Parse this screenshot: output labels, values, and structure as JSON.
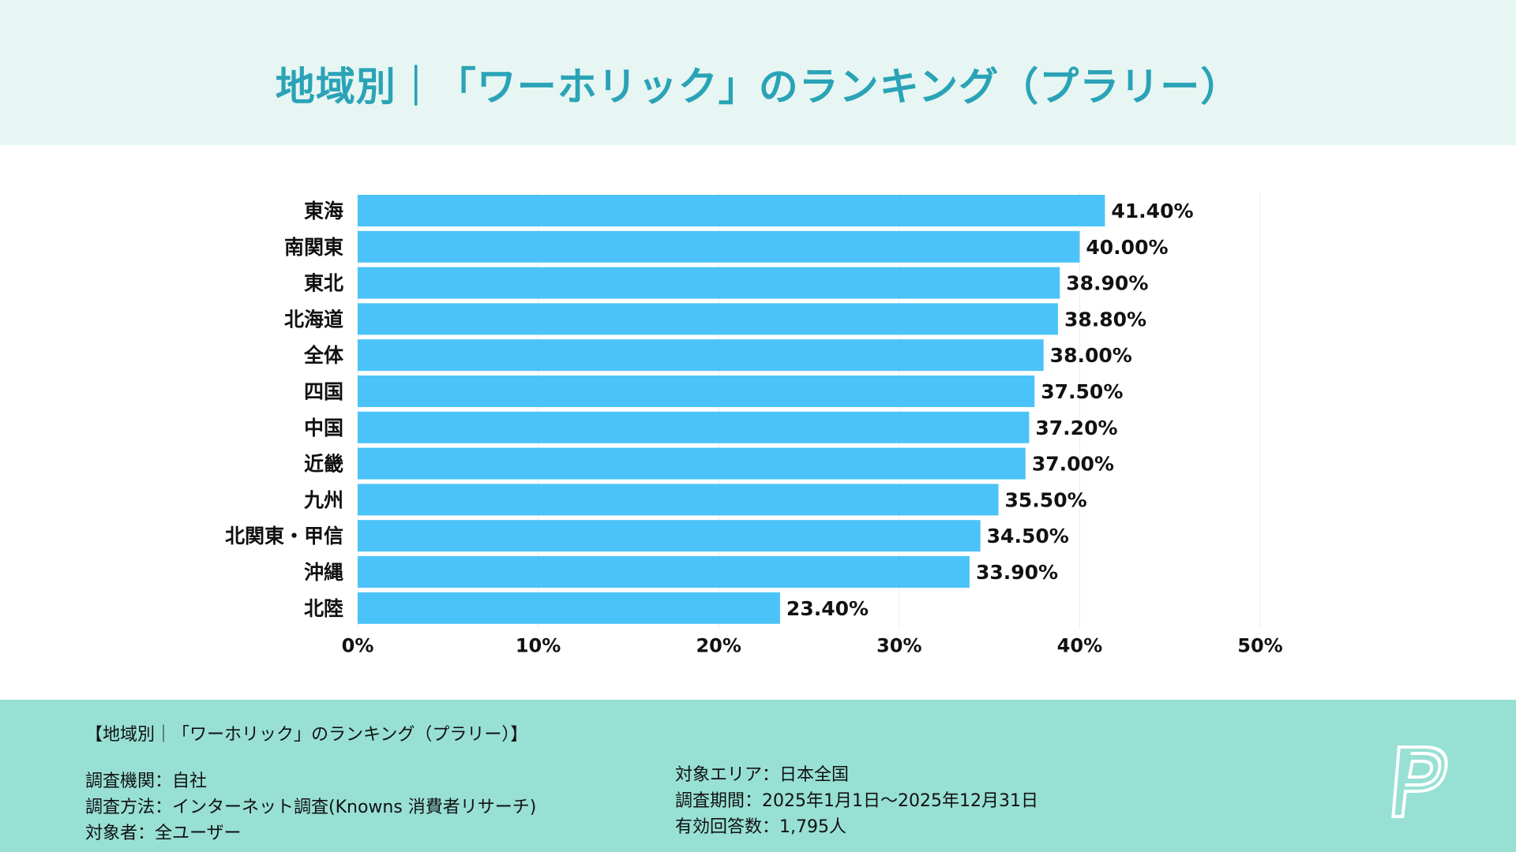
{
  "title": "地域別｜「ワーホリック」のランキング（プラリー）",
  "colors": {
    "header_bg": "#e7f6f3",
    "title": "#2aa3b7",
    "bar": "#4bc3f8",
    "footer_bg": "#98e0d4"
  },
  "chart_data": {
    "type": "bar",
    "orientation": "horizontal",
    "categories": [
      "東海",
      "南関東",
      "東北",
      "北海道",
      "全体",
      "四国",
      "中国",
      "近畿",
      "九州",
      "北関東・甲信",
      "沖縄",
      "北陸"
    ],
    "values": [
      41.4,
      40.0,
      38.9,
      38.8,
      38.0,
      37.5,
      37.2,
      37.0,
      35.5,
      34.5,
      33.9,
      23.4
    ],
    "data_labels": [
      "41.40%",
      "40.00%",
      "38.90%",
      "38.80%",
      "38.00%",
      "37.50%",
      "37.20%",
      "37.00%",
      "35.50%",
      "34.50%",
      "33.90%",
      "23.40%"
    ],
    "xlim": [
      0,
      50
    ],
    "xticks": [
      0,
      10,
      20,
      30,
      40,
      50
    ],
    "xtick_labels": [
      "0%",
      "10%",
      "20%",
      "30%",
      "40%",
      "50%"
    ],
    "grid": true
  },
  "footer": {
    "title": "【地域別｜「ワーホリック」のランキング（プラリー）】",
    "left": [
      "調査機関：自社",
      "調査方法：インターネット調査(Knowns 消費者リサーチ)",
      "対象者：全ユーザー"
    ],
    "right": [
      "対象エリア：日本全国",
      "調査期間：2025年1月1日〜2025年12月31日",
      "有効回答数：1,795人"
    ],
    "logo": "P"
  }
}
